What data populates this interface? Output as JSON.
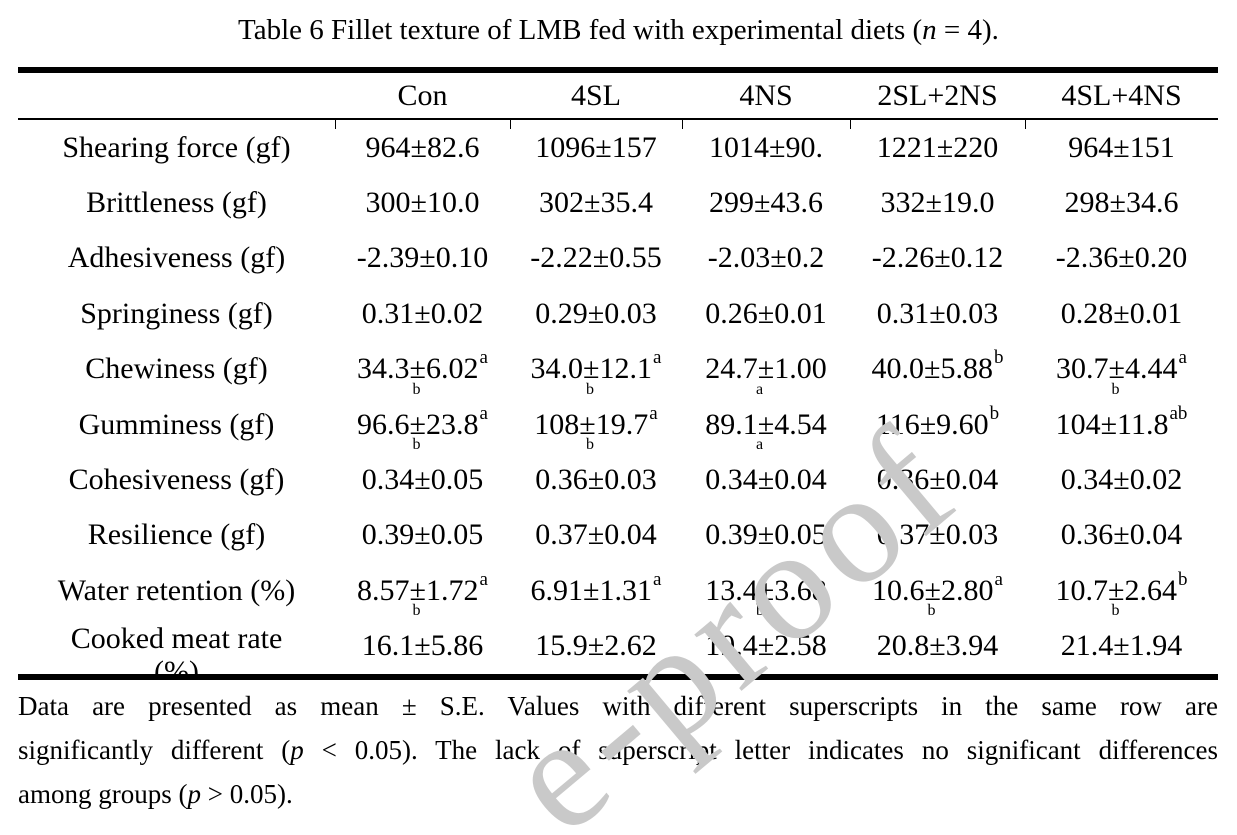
{
  "title": {
    "pre": "Table 6 Fillet texture of LMB fed with experimental diets (",
    "n_italic": "n",
    "post": " = 4)."
  },
  "table": {
    "columns": [
      "",
      "Con",
      "4SL",
      "4NS",
      "2SL+2NS",
      "4SL+4NS"
    ],
    "rows": [
      {
        "label": "Shearing force (gf)",
        "cells": [
          {
            "v": "964±82.6"
          },
          {
            "v": "1096±157"
          },
          {
            "v": "1014±90."
          },
          {
            "v": "1221±220"
          },
          {
            "v": "964±151"
          }
        ]
      },
      {
        "label": "Brittleness (gf)",
        "cells": [
          {
            "v": "300±10.0"
          },
          {
            "v": "302±35.4"
          },
          {
            "v": "299±43.6"
          },
          {
            "v": "332±19.0"
          },
          {
            "v": "298±34.6"
          }
        ]
      },
      {
        "label": "Adhesiveness (gf)",
        "cells": [
          {
            "v": "-2.39±0.10"
          },
          {
            "v": "-2.22±0.55"
          },
          {
            "v": "-2.03±0.2"
          },
          {
            "v": "-2.26±0.12"
          },
          {
            "v": "-2.36±0.20"
          }
        ]
      },
      {
        "label": "Springiness (gf)",
        "cells": [
          {
            "v": "0.31±0.02"
          },
          {
            "v": "0.29±0.03"
          },
          {
            "v": "0.26±0.01"
          },
          {
            "v": "0.31±0.03"
          },
          {
            "v": "0.28±0.01"
          }
        ]
      },
      {
        "label": "Chewiness (gf)",
        "cells": [
          {
            "v": "34.3±6.02",
            "sup": "a",
            "wrap": "b"
          },
          {
            "v": "34.0±12.1",
            "sup": "a",
            "wrap": "b"
          },
          {
            "v": "24.7±1.00",
            "wrap": "a"
          },
          {
            "v": "40.0±5.88",
            "sup": "b"
          },
          {
            "v": "30.7±4.44",
            "sup": "a",
            "wrap": "b"
          }
        ]
      },
      {
        "label": "Gumminess (gf)",
        "cells": [
          {
            "v": "96.6±23.8",
            "sup": "a",
            "wrap": "b"
          },
          {
            "v": "108±19.7",
            "sup": "a",
            "wrap": "b"
          },
          {
            "v": "89.1±4.54",
            "wrap": "a"
          },
          {
            "v": "116±9.60",
            "sup": "b"
          },
          {
            "v": "104±11.8",
            "sup": "ab"
          }
        ]
      },
      {
        "label": "Cohesiveness (gf)",
        "cells": [
          {
            "v": "0.34±0.05"
          },
          {
            "v": "0.36±0.03"
          },
          {
            "v": "0.34±0.04"
          },
          {
            "v": "0.36±0.04"
          },
          {
            "v": "0.34±0.02"
          }
        ]
      },
      {
        "label": "Resilience (gf)",
        "cells": [
          {
            "v": "0.39±0.05"
          },
          {
            "v": "0.37±0.04"
          },
          {
            "v": "0.39±0.05"
          },
          {
            "v": "0.37±0.03"
          },
          {
            "v": "0.36±0.04"
          }
        ]
      },
      {
        "label": "Water retention (%)",
        "cells": [
          {
            "v": "8.57±1.72",
            "sup": "a",
            "wrap": "b"
          },
          {
            "v": "6.91±1.31",
            "sup": "a"
          },
          {
            "v": "13.4±3.68",
            "wrap": "b"
          },
          {
            "v": "10.6±2.80",
            "sup": "a",
            "wrap": "b"
          },
          {
            "v": "10.7±2.64",
            "sup": "b",
            "wrap": "b"
          }
        ]
      },
      {
        "label": "Cooked meat rate",
        "label2": "(%)",
        "cells": [
          {
            "v": "16.1±5.86"
          },
          {
            "v": "15.9±2.62"
          },
          {
            "v": "19.4±2.58"
          },
          {
            "v": "20.8±3.94"
          },
          {
            "v": "21.4±1.94"
          }
        ]
      }
    ]
  },
  "footnote": {
    "line1": "Data are presented as mean ± S.E. Values with different superscripts in the same row are",
    "line2_pre": "significantly different (",
    "line2_p": "p",
    "line2_post": " < 0.05). The lack of superscript letter indicates no significant differences",
    "line3_pre": "among groups (",
    "line3_p": "p",
    "line3_post": " > 0.05)."
  },
  "watermark": {
    "text": "e-proof",
    "color": "#c9c9c9"
  },
  "rule_color": "#000000"
}
